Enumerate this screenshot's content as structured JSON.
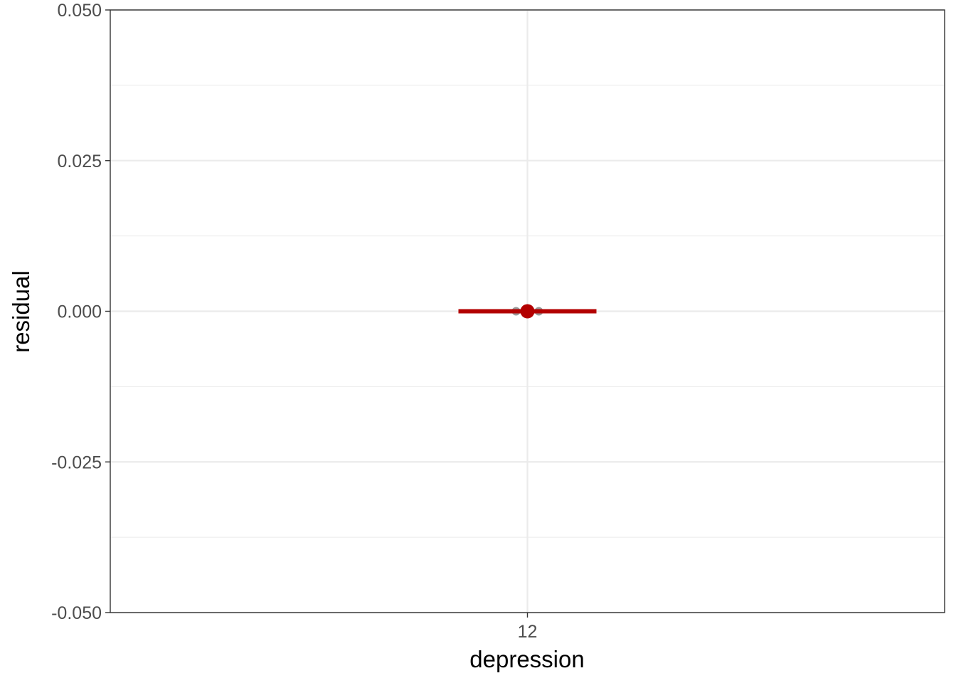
{
  "chart_data": {
    "type": "scatter",
    "xlabel": "depression",
    "ylabel": "residual",
    "categories": [
      "12"
    ],
    "x_ticks": [
      "12"
    ],
    "y_ticks": [
      "0.050",
      "0.025",
      "0.000",
      "-0.025",
      "-0.050"
    ],
    "ylim": [
      -0.05,
      0.05
    ],
    "grid": true,
    "points": [
      {
        "x": "12",
        "y": 0.0
      },
      {
        "x": "12",
        "y": 0.0
      }
    ],
    "mean": {
      "x": "12",
      "y": 0.0
    },
    "mean_line": {
      "x": "12",
      "y": 0.0
    },
    "colors": {
      "points": "#7f7f7f",
      "mean": "#b30000",
      "grid": "#ebebeb",
      "panel_border": "#333333"
    }
  }
}
